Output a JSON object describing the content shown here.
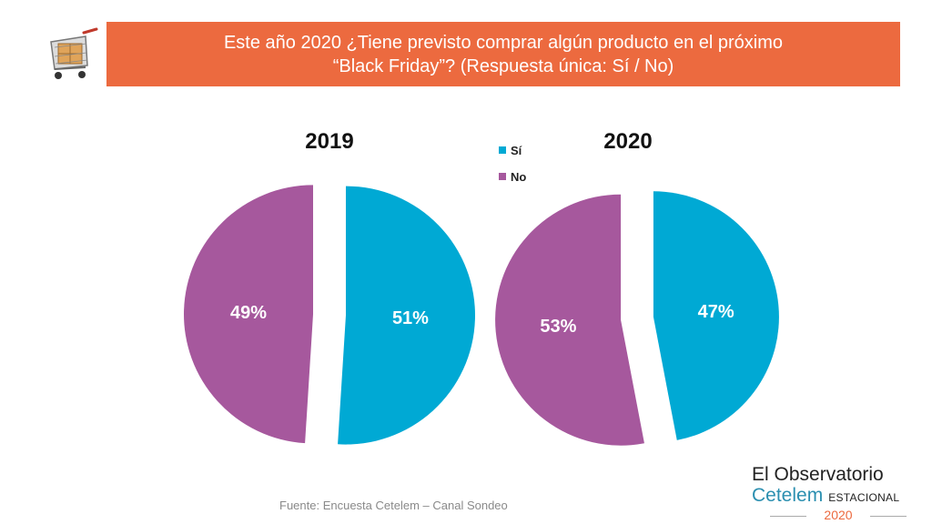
{
  "header": {
    "title_line1": "Este año 2020 ¿Tiene previsto comprar algún producto en el próximo",
    "title_line2": "“Black Friday”?  (Respuesta única: Sí / No)"
  },
  "colors": {
    "si": "#00a9d4",
    "no": "#a6589d",
    "banner": "#ec6a3f"
  },
  "chart_data": {
    "type": "pie",
    "title": "Este año 2020 ¿Tiene previsto comprar algún producto en el próximo “Black Friday”?  (Respuesta única: Sí / No)",
    "legend": {
      "position": "top-center",
      "entries": [
        "Sí",
        "No"
      ]
    },
    "charts": [
      {
        "label": "2019",
        "slices": [
          {
            "name": "Sí",
            "value": 51,
            "label": "51%"
          },
          {
            "name": "No",
            "value": 49,
            "label": "49%"
          }
        ]
      },
      {
        "label": "2020",
        "slices": [
          {
            "name": "Sí",
            "value": 47,
            "label": "47%"
          },
          {
            "name": "No",
            "value": 53,
            "label": "53%"
          }
        ]
      }
    ]
  },
  "footer": {
    "source": "Fuente: Encuesta Cetelem – Canal Sondeo",
    "logo_line1": "El Observatorio",
    "logo_brand": "Cetelem",
    "logo_edition": "ESTACIONAL",
    "logo_year": "2020"
  }
}
